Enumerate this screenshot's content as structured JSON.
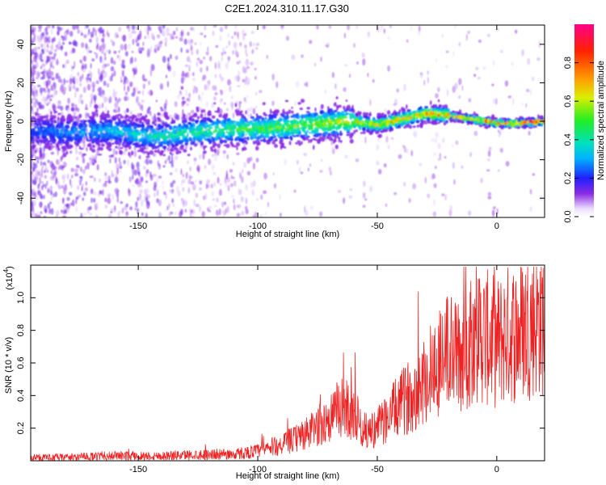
{
  "title": "C2E1.2024.310.11.17.G30",
  "chart_data": [
    {
      "type": "heatmap",
      "xlabel": "Height of straight line (km)",
      "ylabel": "Frequency (Hz)",
      "xlim": [
        -195,
        20
      ],
      "ylim": [
        -50,
        50
      ],
      "x_ticks": [
        -150,
        -100,
        -50,
        0
      ],
      "y_ticks": [
        -40,
        -20,
        0,
        20,
        40
      ],
      "colorbar": {
        "label": "Normalized spectral amplitude",
        "range": [
          0,
          1
        ],
        "ticks": [
          "0.0",
          "0.2",
          "0.4",
          "0.6",
          "0.8"
        ]
      },
      "ridge": {
        "x": [
          -190,
          -180,
          -170,
          -160,
          -150,
          -140,
          -130,
          -120,
          -110,
          -100,
          -90,
          -80,
          -70,
          -60,
          -50,
          -40,
          -30,
          -20,
          -10,
          0,
          10,
          20
        ],
        "y": [
          -5,
          -6,
          -5,
          -5,
          -7,
          -8,
          -6,
          -5,
          -4,
          -4,
          -3,
          -2,
          -1,
          0,
          -2,
          1,
          4,
          3,
          1,
          -1,
          -1,
          0
        ]
      }
    },
    {
      "type": "line",
      "xlabel": "Height of straight line (km)",
      "ylabel": "SNR (10 * v/v)",
      "y_scale_label": "(x10",
      "y_scale_exp": "4",
      "y_scale_suffix": ")",
      "xlim": [
        -195,
        20
      ],
      "ylim": [
        0,
        1.2
      ],
      "x_ticks": [
        -150,
        -100,
        -50,
        0
      ],
      "y_ticks": [
        0.2,
        0.4,
        0.6,
        0.8,
        1.0
      ],
      "y_tick_labels": [
        "0.2",
        "0.4",
        "0.6",
        "0.8",
        "1.0"
      ],
      "series": [
        {
          "color": "#ee2222",
          "x": [
            -195,
            -180,
            -160,
            -140,
            -120,
            -110,
            -100,
            -90,
            -80,
            -70,
            -65,
            -60,
            -57,
            -55,
            -50,
            -45,
            -40,
            -35,
            -30,
            -25,
            -20,
            -15,
            -10,
            -5,
            0,
            5,
            10,
            15,
            19
          ],
          "y": [
            0.02,
            0.02,
            0.03,
            0.03,
            0.04,
            0.04,
            0.06,
            0.1,
            0.16,
            0.26,
            0.33,
            0.3,
            0.22,
            0.18,
            0.2,
            0.28,
            0.35,
            0.42,
            0.5,
            0.6,
            0.68,
            0.62,
            0.8,
            0.76,
            0.72,
            0.78,
            0.8,
            0.86,
            0.88
          ]
        }
      ]
    }
  ]
}
